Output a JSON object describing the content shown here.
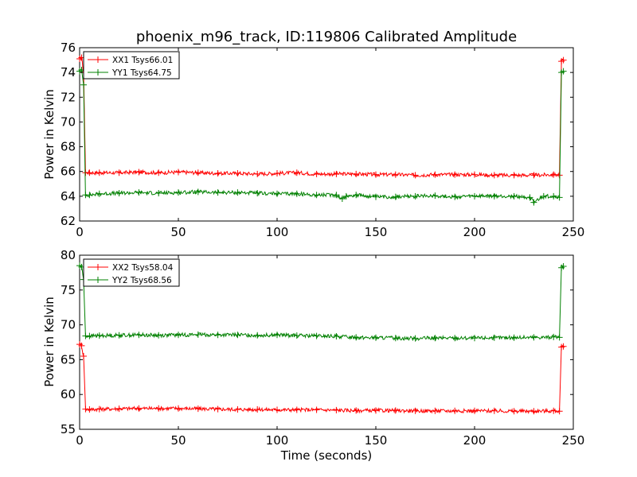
{
  "figure": {
    "title": "phoenix_m96_track, ID:119806 Calibrated Amplitude",
    "xlabel": "Time (seconds)",
    "ylabel": "Power in Kelvin"
  },
  "chart_data": [
    {
      "type": "line",
      "title": "phoenix_m96_track, ID:119806 Calibrated Amplitude",
      "xlabel": "",
      "ylabel": "Power in Kelvin",
      "xlim": [
        0,
        250
      ],
      "ylim": [
        62,
        76
      ],
      "xticks": [
        0,
        50,
        100,
        150,
        200,
        250
      ],
      "yticks": [
        62,
        64,
        66,
        68,
        70,
        72,
        74,
        76
      ],
      "grid": false,
      "legend": "top-left",
      "series": [
        {
          "name": "XX1 Tsys66.01",
          "color": "#ff0000",
          "x": [
            0,
            1,
            2,
            3,
            5,
            10,
            20,
            30,
            40,
            50,
            60,
            70,
            80,
            90,
            100,
            110,
            120,
            130,
            140,
            150,
            160,
            170,
            180,
            190,
            200,
            210,
            220,
            230,
            240,
            243,
            244,
            245
          ],
          "y": [
            75.1,
            75.2,
            74.0,
            65.9,
            65.9,
            65.9,
            65.9,
            65.95,
            65.9,
            65.95,
            65.9,
            65.85,
            65.85,
            65.8,
            65.85,
            65.9,
            65.8,
            65.8,
            65.8,
            65.75,
            65.75,
            65.7,
            65.75,
            65.75,
            65.75,
            65.7,
            65.7,
            65.7,
            65.75,
            65.7,
            74.9,
            75.0
          ]
        },
        {
          "name": "YY1 Tsys64.75",
          "color": "#008000",
          "x": [
            0,
            1,
            2,
            3,
            5,
            10,
            20,
            30,
            40,
            50,
            60,
            70,
            80,
            90,
            100,
            110,
            120,
            130,
            133,
            135,
            140,
            150,
            160,
            170,
            180,
            190,
            200,
            210,
            220,
            228,
            230,
            235,
            240,
            243,
            244,
            245
          ],
          "y": [
            74.1,
            74.2,
            73.0,
            64.1,
            64.1,
            64.2,
            64.25,
            64.3,
            64.25,
            64.3,
            64.35,
            64.3,
            64.3,
            64.25,
            64.2,
            64.2,
            64.1,
            64.1,
            63.8,
            64.0,
            64.1,
            63.95,
            63.95,
            64.0,
            64.05,
            63.95,
            64.0,
            64.0,
            64.0,
            63.9,
            63.5,
            64.0,
            64.0,
            63.9,
            74.0,
            74.1
          ]
        }
      ]
    },
    {
      "type": "line",
      "title": "",
      "xlabel": "Time (seconds)",
      "ylabel": "Power in Kelvin",
      "xlim": [
        0,
        250
      ],
      "ylim": [
        55,
        80
      ],
      "xticks": [
        0,
        50,
        100,
        150,
        200,
        250
      ],
      "yticks": [
        55,
        60,
        65,
        70,
        75,
        80
      ],
      "grid": false,
      "legend": "top-left",
      "series": [
        {
          "name": "XX2 Tsys58.04",
          "color": "#ff0000",
          "x": [
            0,
            1,
            2,
            3,
            5,
            10,
            20,
            30,
            40,
            50,
            60,
            70,
            80,
            90,
            100,
            110,
            120,
            130,
            140,
            150,
            160,
            170,
            180,
            190,
            200,
            210,
            220,
            230,
            240,
            243,
            244,
            245
          ],
          "y": [
            67.2,
            67.0,
            65.5,
            57.9,
            57.85,
            57.9,
            57.95,
            58.0,
            58.0,
            58.0,
            57.95,
            57.9,
            57.85,
            57.85,
            57.8,
            57.8,
            57.8,
            57.75,
            57.7,
            57.7,
            57.7,
            57.65,
            57.65,
            57.65,
            57.65,
            57.65,
            57.6,
            57.6,
            57.65,
            57.6,
            66.8,
            66.9
          ]
        },
        {
          "name": "YY2 Tsys68.56",
          "color": "#008000",
          "x": [
            0,
            1,
            2,
            3,
            5,
            10,
            20,
            30,
            40,
            50,
            60,
            70,
            80,
            90,
            100,
            110,
            120,
            130,
            140,
            150,
            160,
            170,
            180,
            190,
            200,
            210,
            220,
            230,
            240,
            243,
            244,
            245
          ],
          "y": [
            78.5,
            78.3,
            76.5,
            68.4,
            68.4,
            68.45,
            68.5,
            68.55,
            68.5,
            68.55,
            68.6,
            68.55,
            68.55,
            68.5,
            68.55,
            68.45,
            68.4,
            68.35,
            68.2,
            68.15,
            68.1,
            68.05,
            68.1,
            68.1,
            68.1,
            68.15,
            68.15,
            68.2,
            68.25,
            68.2,
            78.2,
            78.4
          ]
        }
      ]
    }
  ]
}
